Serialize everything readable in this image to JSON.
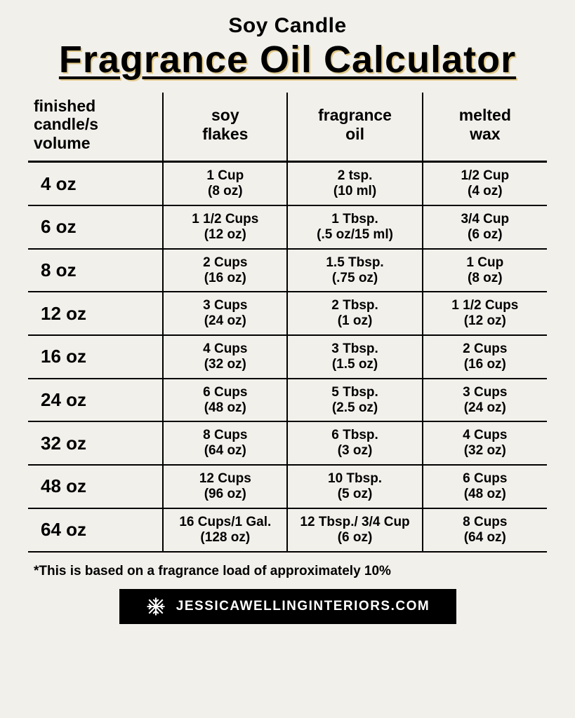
{
  "header": {
    "pretitle": "Soy Candle",
    "title": "Fragrance Oil Calculator"
  },
  "table": {
    "columns": [
      "finished\ncandle/s\nvolume",
      "soy\nflakes",
      "fragrance\noil",
      "melted\nwax"
    ],
    "rows": [
      {
        "volume": "4 oz",
        "soy": {
          "l1": "1 Cup",
          "l2": "(8 oz)"
        },
        "oil": {
          "l1": "2 tsp.",
          "l2": "(10 ml)"
        },
        "wax": {
          "l1": "1/2 Cup",
          "l2": "(4 oz)"
        }
      },
      {
        "volume": "6 oz",
        "soy": {
          "l1": "1 1/2 Cups",
          "l2": "(12 oz)"
        },
        "oil": {
          "l1": "1 Tbsp.",
          "l2": "(.5 oz/15 ml)"
        },
        "wax": {
          "l1": "3/4 Cup",
          "l2": "(6 oz)"
        }
      },
      {
        "volume": "8 oz",
        "soy": {
          "l1": "2 Cups",
          "l2": "(16 oz)"
        },
        "oil": {
          "l1": "1.5 Tbsp.",
          "l2": "(.75 oz)"
        },
        "wax": {
          "l1": "1 Cup",
          "l2": "(8 oz)"
        }
      },
      {
        "volume": "12 oz",
        "soy": {
          "l1": "3 Cups",
          "l2": "(24 oz)"
        },
        "oil": {
          "l1": "2 Tbsp.",
          "l2": "(1 oz)"
        },
        "wax": {
          "l1": "1 1/2 Cups",
          "l2": "(12 oz)"
        }
      },
      {
        "volume": "16 oz",
        "soy": {
          "l1": "4 Cups",
          "l2": "(32 oz)"
        },
        "oil": {
          "l1": "3 Tbsp.",
          "l2": "(1.5 oz)"
        },
        "wax": {
          "l1": "2 Cups",
          "l2": "(16 oz)"
        }
      },
      {
        "volume": "24 oz",
        "soy": {
          "l1": "6 Cups",
          "l2": "(48 oz)"
        },
        "oil": {
          "l1": "5 Tbsp.",
          "l2": "(2.5 oz)"
        },
        "wax": {
          "l1": "3 Cups",
          "l2": "(24 oz)"
        }
      },
      {
        "volume": "32 oz",
        "soy": {
          "l1": "8 Cups",
          "l2": "(64 oz)"
        },
        "oil": {
          "l1": "6 Tbsp.",
          "l2": "(3 oz)"
        },
        "wax": {
          "l1": "4 Cups",
          "l2": "(32 oz)"
        }
      },
      {
        "volume": "48 oz",
        "soy": {
          "l1": "12 Cups",
          "l2": "(96 oz)"
        },
        "oil": {
          "l1": "10 Tbsp.",
          "l2": "(5 oz)"
        },
        "wax": {
          "l1": "6 Cups",
          "l2": "(48 oz)"
        }
      },
      {
        "volume": "64 oz",
        "soy": {
          "l1": "16 Cups/1 Gal.",
          "l2": "(128 oz)"
        },
        "oil": {
          "l1": "12 Tbsp./ 3/4 Cup",
          "l2": "(6 oz)"
        },
        "wax": {
          "l1": "8 Cups",
          "l2": "(64 oz)"
        }
      }
    ]
  },
  "note": "*This is based on a fragrance load of approximately 10%",
  "footer": {
    "text": "JESSICAWELLINGINTERIORS.COM"
  },
  "style": {
    "background_color": "#f2f0eb",
    "text_color": "#000000",
    "title_shadow_color": "#e0c888",
    "footer_bg": "#000000",
    "footer_fg": "#ffffff",
    "table_border_color": "#000000",
    "title_fontsize": 54,
    "pretitle_fontsize": 30,
    "header_fontsize": 23,
    "cell_fontsize": 19
  }
}
